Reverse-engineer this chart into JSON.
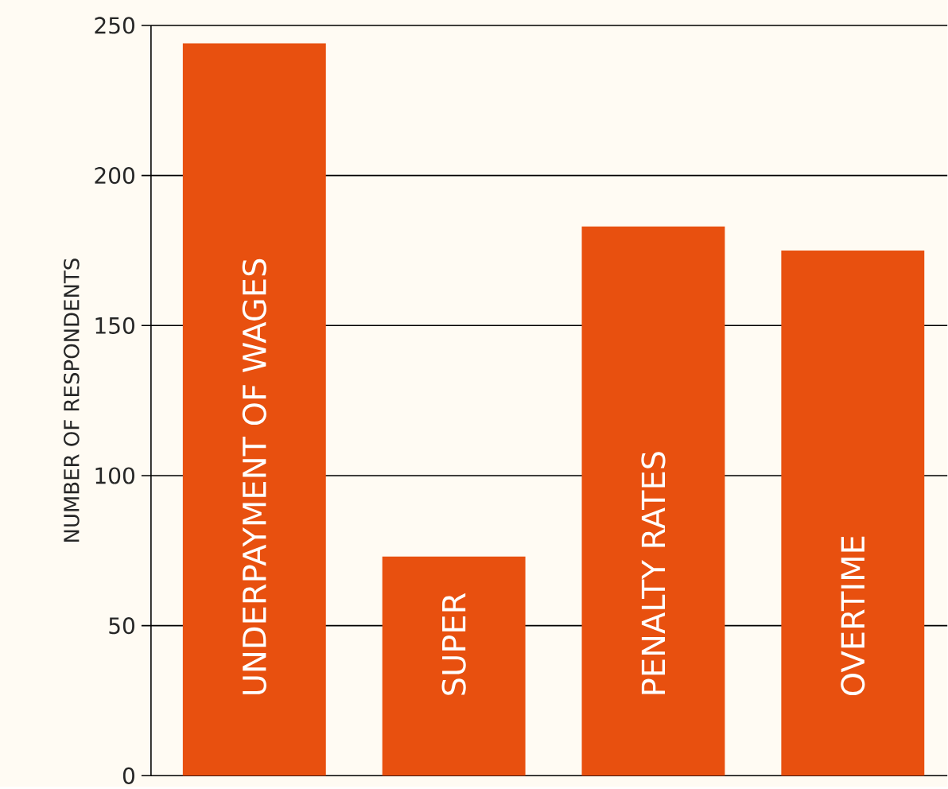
{
  "chart_data": {
    "type": "bar",
    "ylabel": "NUMBER OF RESPONDENTS",
    "categories": [
      "UNDERPAYMENT OF WAGES",
      "SUPER",
      "PENALTY RATES",
      "OVERTIME"
    ],
    "values": [
      244,
      73,
      183,
      175
    ],
    "color": "#e8500f",
    "ylim": [
      0,
      250
    ],
    "yticks": [
      0,
      50,
      100,
      150,
      200,
      250
    ],
    "grid": "y"
  }
}
